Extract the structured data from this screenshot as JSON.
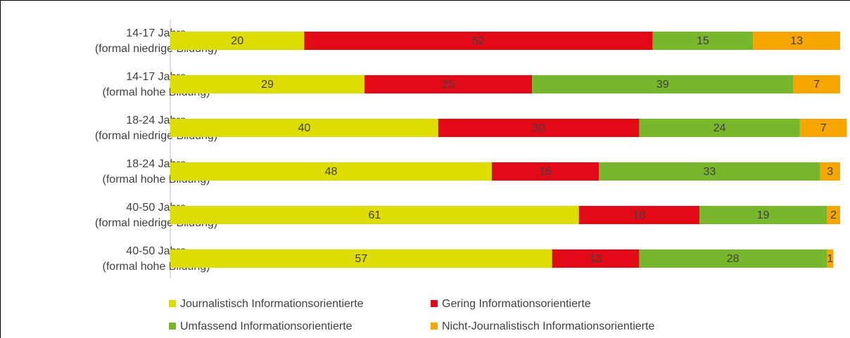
{
  "chart_data": {
    "type": "stacked-bar-horizontal",
    "categories": [
      [
        "14-17 Jahre",
        "(formal niedrige Bildung)"
      ],
      [
        "14-17 Jahre",
        "(formal hohe Bildung)"
      ],
      [
        "18-24 Jahre",
        "(formal niedrige Bildung)"
      ],
      [
        "18-24 Jahre",
        "(formal hohe Bildung)"
      ],
      [
        "40-50 Jahre",
        "(formal niedrige Bildung)"
      ],
      [
        "40-50 Jahre",
        "(formal hohe Bildung)"
      ]
    ],
    "series": [
      {
        "name": "Journalistisch Informationsorientierte",
        "color": "#dedc00",
        "values": [
          20,
          29,
          40,
          48,
          61,
          57
        ]
      },
      {
        "name": "Gering Informationsorientierte",
        "color": "#e30a17",
        "values": [
          52,
          25,
          30,
          16,
          18,
          13
        ]
      },
      {
        "name": "Umfassend Informationsorientierte",
        "color": "#78b72b",
        "values": [
          15,
          39,
          24,
          33,
          19,
          28
        ]
      },
      {
        "name": "Nicht-Journalistisch Informationsorientierte",
        "color": "#f7a600",
        "values": [
          13,
          7,
          7,
          3,
          2,
          1
        ]
      }
    ],
    "xlim": [
      0,
      100
    ],
    "legend": "bottom"
  }
}
